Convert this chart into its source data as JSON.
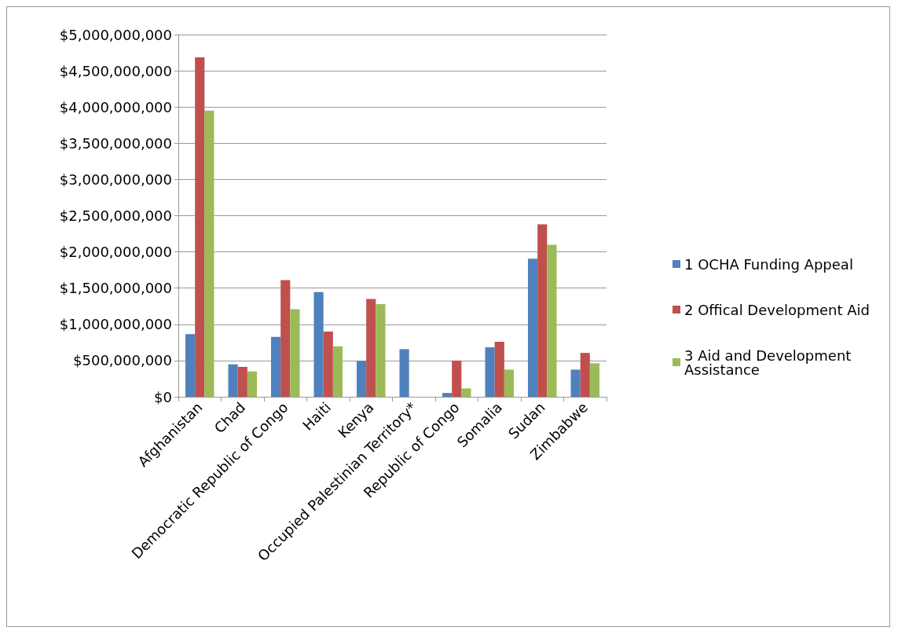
{
  "chart_data": {
    "type": "bar",
    "categories": [
      "Afghanistan",
      "Chad",
      "Democratic Republic of Congo",
      "Haiti",
      "Kenya",
      "Occupied Palestinian Territory*",
      "Republic of Congo",
      "Somalia",
      "Sudan",
      "Zimbabwe"
    ],
    "series": [
      {
        "name": "1 OCHA Funding Appeal",
        "color": "#4f81bd",
        "values": [
          865000000,
          448000000,
          826000000,
          1446000000,
          497000000,
          658000000,
          53000000,
          683000000,
          1905000000,
          375000000
        ]
      },
      {
        "name": "2 Offical Development Aid",
        "color": "#c0504d",
        "values": [
          4685000000,
          413000000,
          1610000000,
          900000000,
          1350000000,
          null,
          500000000,
          760000000,
          2380000000,
          606000000
        ]
      },
      {
        "name": "3 Aid and Development Assistance",
        "color": "#9bbb59",
        "values": [
          3950000000,
          350000000,
          1210000000,
          697000000,
          1280000000,
          null,
          116000000,
          375000000,
          2100000000,
          462000000
        ]
      }
    ],
    "ylim": [
      0,
      5000000000
    ],
    "yticks": [
      {
        "value": 0,
        "label": "$0"
      },
      {
        "value": 500000000,
        "label": "$500,000,000"
      },
      {
        "value": 1000000000,
        "label": "$1,000,000,000"
      },
      {
        "value": 1500000000,
        "label": "$1,500,000,000"
      },
      {
        "value": 2000000000,
        "label": "$2,000,000,000"
      },
      {
        "value": 2500000000,
        "label": "$2,500,000,000"
      },
      {
        "value": 3000000000,
        "label": "$3,000,000,000"
      },
      {
        "value": 3500000000,
        "label": "$3,500,000,000"
      },
      {
        "value": 4000000000,
        "label": "$4,000,000,000"
      },
      {
        "value": 4500000000,
        "label": "$4,500,000,000"
      },
      {
        "value": 5000000000,
        "label": "$5,000,000,000"
      }
    ],
    "grid": "y",
    "legend": "right"
  }
}
